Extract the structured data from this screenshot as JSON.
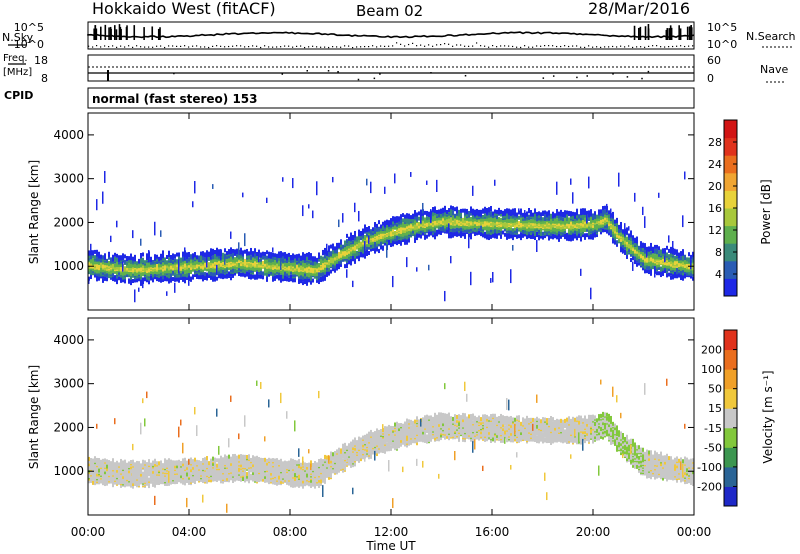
{
  "header": {
    "title": "Hokkaido West (fitACF)",
    "beam": "Beam 02",
    "date": "28/Mar/2016"
  },
  "noise_panel": {
    "left_label": "N.Sky",
    "right_label": "N.Search",
    "left_ticks": [
      "10^5",
      "10^0"
    ],
    "right_ticks": [
      "10^5",
      "10^0"
    ]
  },
  "freq_panel": {
    "left_label_1": "Freq.",
    "left_label_2": "[MHz]",
    "left_ticks": [
      "18",
      "8"
    ],
    "right_label": "Nave",
    "right_ticks": [
      "60",
      "0"
    ]
  },
  "cpid": {
    "label": "CPID",
    "value": "normal (fast stereo) 153"
  },
  "chart_data": [
    {
      "type": "heatmap",
      "name": "power",
      "ylabel": "Slant Range [km]",
      "xlabel": "",
      "ylim": [
        0,
        4500
      ],
      "yticks": [
        "1000",
        "2000",
        "3000",
        "4000"
      ],
      "colorbar": {
        "label": "Power [dB]",
        "ticks": [
          "4",
          "8",
          "12",
          "16",
          "20",
          "24",
          "28"
        ],
        "colors": [
          "#1e28e6",
          "#2a5cb4",
          "#3a8a7a",
          "#5fb04e",
          "#a8c83c",
          "#e8d23a",
          "#f0a532",
          "#ea6e1e",
          "#e0321c",
          "#d21414"
        ]
      },
      "ground_band": {
        "x_hours": [
          0,
          1,
          2,
          3,
          4,
          5,
          6,
          7,
          8,
          9,
          10,
          11,
          12,
          13,
          14,
          15,
          16,
          17,
          18,
          19,
          20,
          20.5,
          21,
          22,
          23,
          24
        ],
        "range_km": [
          1050,
          980,
          950,
          990,
          1020,
          1060,
          1100,
          1040,
          980,
          940,
          1300,
          1600,
          1800,
          1950,
          2050,
          2020,
          2000,
          1980,
          1960,
          1950,
          1980,
          2100,
          1700,
          1200,
          1100,
          1000
        ]
      }
    },
    {
      "type": "heatmap",
      "name": "velocity",
      "xlabel": "Time UT",
      "ylabel": "Slant Range [km]",
      "ylim": [
        0,
        4500
      ],
      "yticks": [
        "1000",
        "2000",
        "3000",
        "4000"
      ],
      "xticks": [
        "00:00",
        "04:00",
        "08:00",
        "12:00",
        "16:00",
        "20:00",
        "00:00"
      ],
      "xlim_hours": [
        0,
        24
      ],
      "colorbar": {
        "label": "Velocity [m s⁻¹]",
        "ticks": [
          "200",
          "100",
          "50",
          "15",
          "-15",
          "-50",
          "-100",
          "-200"
        ],
        "colors": [
          "#1e28c8",
          "#2a6496",
          "#3c9650",
          "#82c83c",
          "#c8c8c8",
          "#f0c83c",
          "#f0a028",
          "#ea6e1e",
          "#e0321c"
        ]
      }
    }
  ]
}
